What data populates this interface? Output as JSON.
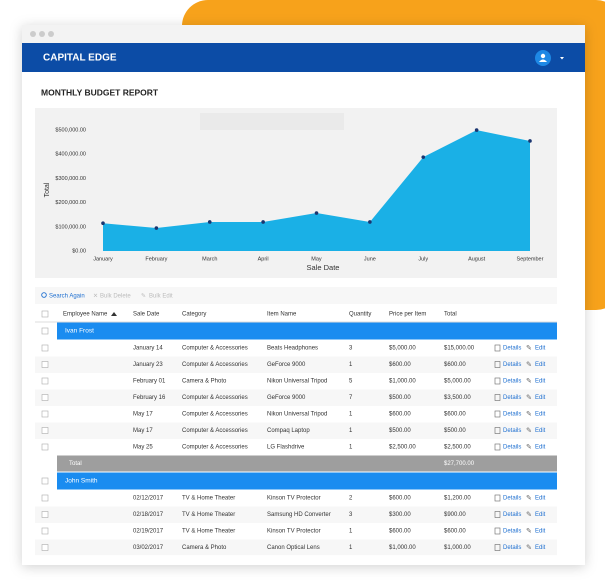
{
  "header": {
    "brand": "CAPITAL EDGE"
  },
  "report_title": "MONTHLY BUDGET REPORT",
  "chart_data": {
    "type": "area",
    "x_label": "Sale Date",
    "y_label": "Total",
    "categories": [
      "January",
      "February",
      "March",
      "April",
      "May",
      "June",
      "July",
      "August",
      "September"
    ],
    "values": [
      115000,
      95000,
      120000,
      120000,
      157000,
      120000,
      388000,
      500000,
      455000
    ],
    "color": "#1ab0e6",
    "marker_color": "#1a3570",
    "ylim": [
      0,
      550000
    ],
    "yticks": [
      {
        "value": 0,
        "label": "$0.00"
      },
      {
        "value": 100000,
        "label": "$100,000.00"
      },
      {
        "value": 200000,
        "label": "$200,000.00"
      },
      {
        "value": 300000,
        "label": "$300,000.00"
      },
      {
        "value": 400000,
        "label": "$400,000.00"
      },
      {
        "value": 500000,
        "label": "$500,000.00"
      }
    ]
  },
  "toolbar": {
    "search": "Search Again",
    "bulk_delete": "Bulk Delete",
    "bulk_edit": "Bulk Edit"
  },
  "table": {
    "columns": [
      "Employee Name",
      "Sale Date",
      "Category",
      "Item Name",
      "Quantity",
      "Price per Item",
      "Total"
    ],
    "actions": {
      "details": "Details",
      "edit": "Edit"
    },
    "groups": [
      {
        "name": "Ivan Frost",
        "rows": [
          [
            "January 14",
            "Computer & Accessories",
            "Beats Headphones",
            "3",
            "$5,000.00",
            "$15,000.00"
          ],
          [
            "January 23",
            "Computer & Accessories",
            "GeForce 9000",
            "1",
            "$600.00",
            "$600.00"
          ],
          [
            "February 01",
            "Camera & Photo",
            "Nikon Universal Tripod",
            "5",
            "$1,000.00",
            "$5,000.00"
          ],
          [
            "February 16",
            "Computer & Accessories",
            "GeForce 9000",
            "7",
            "$500.00",
            "$3,500.00"
          ],
          [
            "May 17",
            "Computer & Accessories",
            "Nikon Universal Tripod",
            "1",
            "$600.00",
            "$600.00"
          ],
          [
            "May 17",
            "Computer & Accessories",
            "Compaq Laptop",
            "1",
            "$500.00",
            "$500.00"
          ],
          [
            "May 25",
            "Computer & Accessories",
            "LG Flashdrive",
            "1",
            "$2,500.00",
            "$2,500.00"
          ]
        ],
        "total_label": "Total",
        "total": "$27,700.00"
      },
      {
        "name": "John Smith",
        "rows": [
          [
            "02/12/2017",
            "TV & Home Theater",
            "Kinson TV Protector",
            "2",
            "$600.00",
            "$1,200.00"
          ],
          [
            "02/18/2017",
            "TV & Home Theater",
            "Samsung HD Converter",
            "3",
            "$300.00",
            "$900.00"
          ],
          [
            "02/19/2017",
            "TV & Home Theater",
            "Kinson TV Protector",
            "1",
            "$600.00",
            "$600.00"
          ],
          [
            "03/02/2017",
            "Camera & Photo",
            "Canon Optical Lens",
            "1",
            "$1,000.00",
            "$1,000.00"
          ]
        ]
      }
    ]
  }
}
